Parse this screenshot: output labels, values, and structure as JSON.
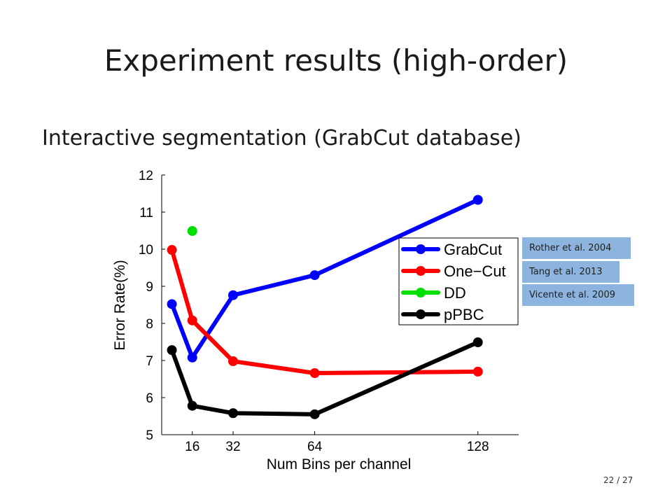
{
  "slide": {
    "title": "Experiment results (high-order)",
    "subtitle": "Interactive segmentation (GrabCut database)",
    "page_number": "22 / 27"
  },
  "tags": [
    {
      "name": "rother-tag",
      "text": "Rother et al. 2004",
      "series": "GrabCut"
    },
    {
      "name": "tang-tag",
      "text": "Tang et al. 2013",
      "series": "One−Cut"
    },
    {
      "name": "vicente-tag",
      "text": "Vicente et al. 2009",
      "series": "DD"
    }
  ],
  "chart_data": {
    "type": "line",
    "xlabel": "Num Bins per channel",
    "ylabel": "Error Rate(%)",
    "xlim": [
      4,
      144
    ],
    "ylim": [
      5,
      12
    ],
    "xticks": [
      16,
      32,
      64,
      128
    ],
    "yticks": [
      5,
      6,
      7,
      8,
      9,
      10,
      11,
      12
    ],
    "grid": false,
    "legend_position": "right",
    "series": [
      {
        "name": "GrabCut",
        "color": "#0000ff",
        "x": [
          8,
          16,
          32,
          64,
          128
        ],
        "y": [
          8.52,
          7.08,
          8.76,
          9.3,
          11.33
        ]
      },
      {
        "name": "One−Cut",
        "color": "#ff0000",
        "x": [
          8,
          16,
          32,
          64,
          128
        ],
        "y": [
          9.98,
          8.08,
          6.98,
          6.66,
          6.7
        ]
      },
      {
        "name": "DD",
        "color": "#00e000",
        "x": [
          16
        ],
        "y": [
          10.49
        ]
      },
      {
        "name": "pPBC",
        "color": "#000000",
        "x": [
          8,
          16,
          32,
          64,
          128
        ],
        "y": [
          7.28,
          5.78,
          5.58,
          5.55,
          7.49
        ]
      }
    ]
  }
}
